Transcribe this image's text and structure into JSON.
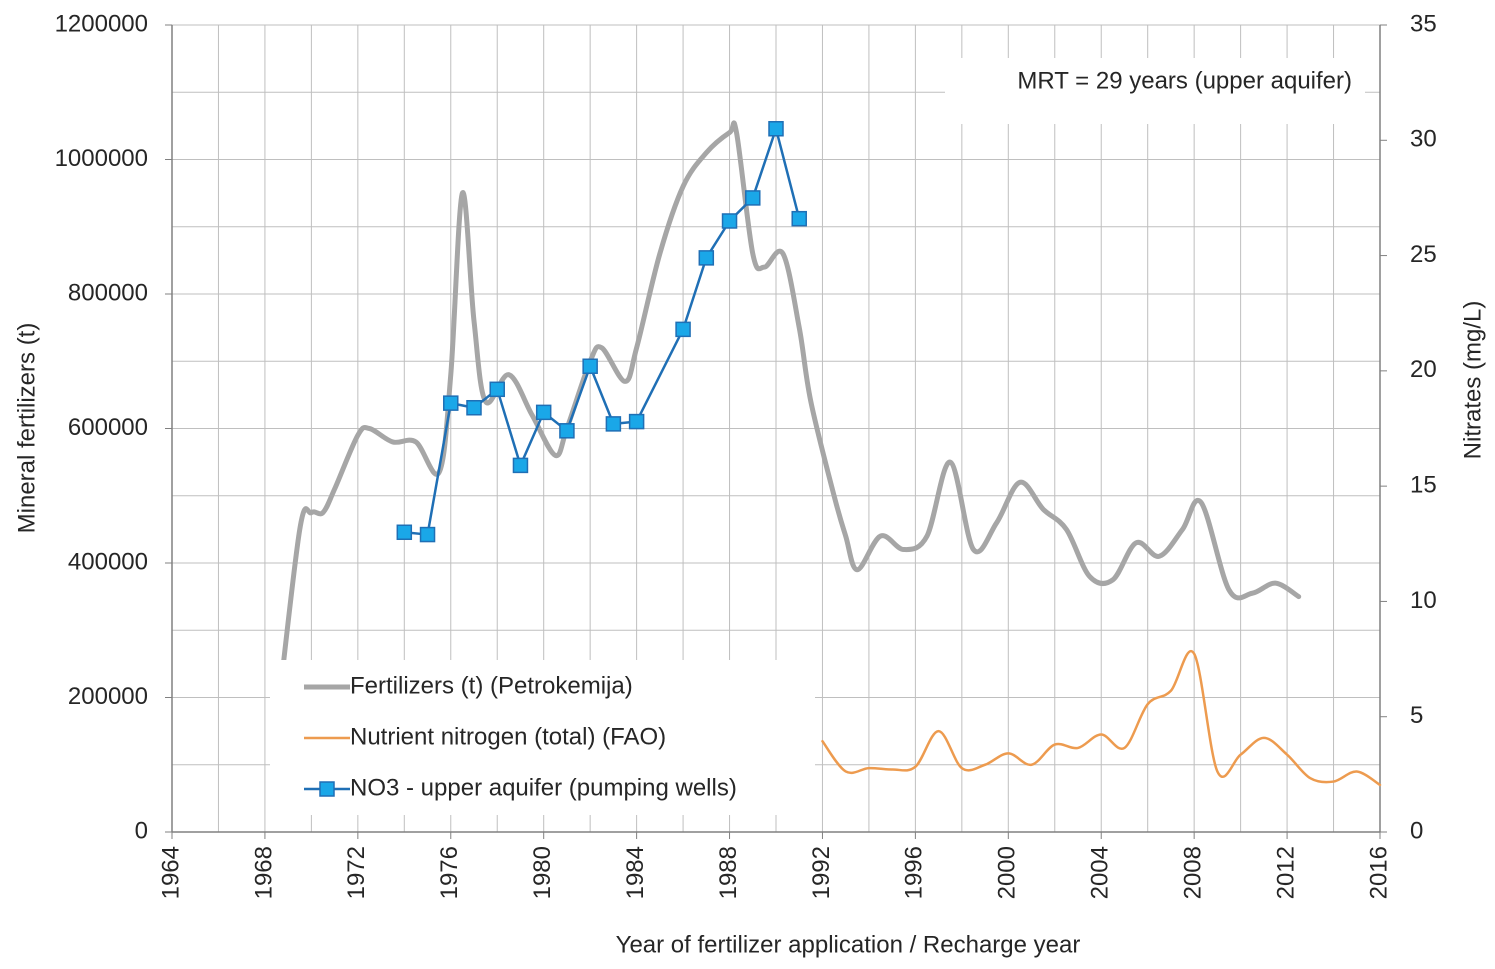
{
  "chart_data": {
    "type": "line",
    "xlabel": "Year of fertilizer application / Recharge year",
    "ylabel": "Mineral fertilizers (t)",
    "y2label": "Nitrates (mg/L)",
    "annotation": "MRT = 29 years (upper aquifer)",
    "xlim": [
      1964,
      2016
    ],
    "xticks": [
      1964,
      1968,
      1972,
      1976,
      1980,
      1984,
      1988,
      1992,
      1996,
      2000,
      2004,
      2008,
      2012,
      2016
    ],
    "minor_xticks": [
      1966,
      1970,
      1974,
      1978,
      1982,
      1986,
      1990,
      1994,
      1998,
      2002,
      2006,
      2010,
      2014
    ],
    "ylim": [
      0,
      1200000
    ],
    "yticks": [
      0,
      200000,
      400000,
      600000,
      800000,
      1000000,
      1200000
    ],
    "minor_yticks": [
      100000,
      300000,
      500000,
      700000,
      900000,
      1100000
    ],
    "y2lim": [
      0,
      35
    ],
    "y2ticks": [
      0,
      5,
      10,
      15,
      20,
      25,
      30,
      35
    ],
    "grid": true,
    "legend": "lower left",
    "series": [
      {
        "name": "Fertilizers (t) (Petrokemija)",
        "color": "#a6a6a6",
        "marker": "none",
        "x": [
          1968.5,
          1969.5,
          1970,
          1970.5,
          1971,
          1972,
          1972.5,
          1973.5,
          1974.5,
          1975.5,
          1976,
          1976.5,
          1977,
          1977.5,
          1978.5,
          1979.5,
          1980.5,
          1981,
          1982,
          1982.5,
          1983.5,
          1984,
          1985,
          1986,
          1987,
          1988,
          1988.3,
          1989,
          1989.5,
          1990.3,
          1991,
          1991.5,
          1992.5,
          1993,
          1993.5,
          1994.5,
          1995.5,
          1996.5,
          1997.5,
          1998.5,
          1999.5,
          2000.5,
          2001.5,
          2002.5,
          2003.5,
          2004.5,
          2005.5,
          2006.5,
          2007.5,
          2008.3,
          2009.5,
          2010.5,
          2011.5,
          2012.5
        ],
        "values": [
          160000,
          450000,
          475000,
          475000,
          510000,
          590000,
          600000,
          580000,
          580000,
          535000,
          680000,
          950000,
          760000,
          640000,
          680000,
          620000,
          560000,
          600000,
          700000,
          720000,
          670000,
          720000,
          860000,
          960000,
          1010000,
          1040000,
          1040000,
          860000,
          840000,
          860000,
          750000,
          640000,
          500000,
          440000,
          390000,
          440000,
          420000,
          440000,
          550000,
          420000,
          460000,
          520000,
          480000,
          450000,
          380000,
          375000,
          430000,
          410000,
          450000,
          490000,
          360000,
          355000,
          370000,
          350000
        ]
      },
      {
        "name": "Nutrient nitrogen (total) (FAO)",
        "color": "#ed9b4f",
        "marker": "none",
        "x": [
          1992,
          1993,
          1994,
          1995,
          1996,
          1997,
          1998,
          1999,
          2000,
          2001,
          2002,
          2003,
          2004,
          2005,
          2006,
          2007,
          2008,
          2009,
          2010,
          2011,
          2012,
          2013,
          2014,
          2015,
          2016
        ],
        "values": [
          135000,
          90000,
          95000,
          93000,
          97000,
          150000,
          95000,
          100000,
          117000,
          100000,
          130000,
          125000,
          145000,
          125000,
          190000,
          210000,
          265000,
          90000,
          115000,
          140000,
          115000,
          80000,
          75000,
          90000,
          70000
        ]
      },
      {
        "name": "NO3 - upper aquifer (pumping wells)",
        "color": "#1f6fb5",
        "marker": "square",
        "axis": "y2",
        "x": [
          1974,
          1975,
          1976,
          1977,
          1978,
          1979,
          1980,
          1981,
          1982,
          1983,
          1984,
          1986,
          1987,
          1988,
          1989,
          1990,
          1991
        ],
        "values": [
          13.0,
          12.9,
          18.6,
          18.4,
          19.2,
          15.9,
          18.2,
          17.4,
          20.2,
          17.7,
          17.8,
          21.8,
          24.9,
          26.5,
          27.5,
          30.5,
          26.6
        ]
      }
    ]
  }
}
